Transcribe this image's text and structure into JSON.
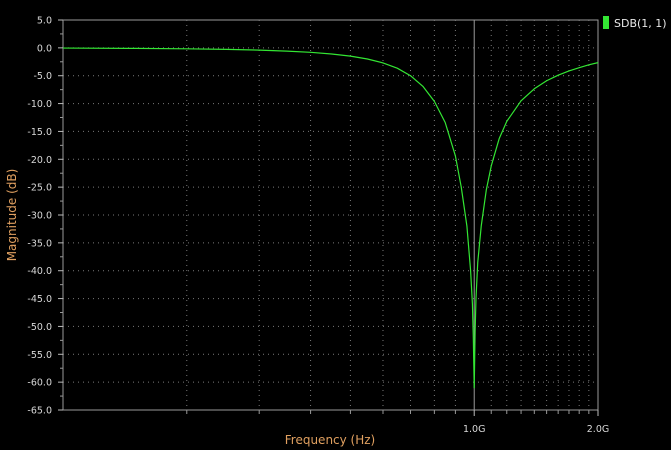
{
  "chart_data": {
    "type": "line",
    "xlabel": "Frequency (Hz)",
    "ylabel": "Magnitude (dB)",
    "xscale": "log",
    "xlim": [
      100000000,
      2000000000
    ],
    "ylim": [
      -65,
      5
    ],
    "grid": true,
    "legend_position": "top-right",
    "x_tick_labels": [
      {
        "value": 1000000000,
        "label": "1.0G"
      },
      {
        "value": 2000000000,
        "label": "2.0G"
      }
    ],
    "y_tick_labels": [
      {
        "value": 5,
        "label": "5.0"
      },
      {
        "value": 0,
        "label": "0.0"
      },
      {
        "value": -5,
        "label": "-5.0"
      },
      {
        "value": -10,
        "label": "-10.0"
      },
      {
        "value": -15,
        "label": "-15.0"
      },
      {
        "value": -20,
        "label": "-20.0"
      },
      {
        "value": -25,
        "label": "-25.0"
      },
      {
        "value": -30,
        "label": "-30.0"
      },
      {
        "value": -35,
        "label": "-35.0"
      },
      {
        "value": -40,
        "label": "-40.0"
      },
      {
        "value": -45,
        "label": "-45.0"
      },
      {
        "value": -50,
        "label": "-50.0"
      },
      {
        "value": -55,
        "label": "-55.0"
      },
      {
        "value": -60,
        "label": "-60.0"
      },
      {
        "value": -65,
        "label": "-65.0"
      }
    ],
    "series": [
      {
        "name": "SDB(1, 1)",
        "color": "#33e633",
        "x": [
          100000000,
          150000000,
          200000000,
          250000000,
          300000000,
          350000000,
          400000000,
          450000000,
          500000000,
          550000000,
          600000000,
          650000000,
          700000000,
          750000000,
          800000000,
          850000000,
          900000000,
          930000000,
          960000000,
          980000000,
          990000000,
          995000000,
          1000000000,
          1005000000,
          1010000000,
          1020000000,
          1040000000,
          1070000000,
          1100000000,
          1150000000,
          1200000000,
          1300000000,
          1400000000,
          1500000000,
          1600000000,
          1700000000,
          1800000000,
          1900000000,
          2000000000
        ],
        "y": [
          -0.04,
          -0.1,
          -0.17,
          -0.27,
          -0.4,
          -0.58,
          -0.8,
          -1.1,
          -1.48,
          -2.0,
          -2.7,
          -3.65,
          -5.0,
          -6.9,
          -9.6,
          -13.4,
          -19.4,
          -25.0,
          -32.0,
          -40.0,
          -46.0,
          -52.0,
          -61.0,
          -51.0,
          -45.0,
          -38.5,
          -32.0,
          -25.5,
          -21.2,
          -16.3,
          -13.2,
          -9.5,
          -7.35,
          -5.9,
          -4.9,
          -4.15,
          -3.55,
          -3.05,
          -2.65
        ]
      }
    ]
  }
}
